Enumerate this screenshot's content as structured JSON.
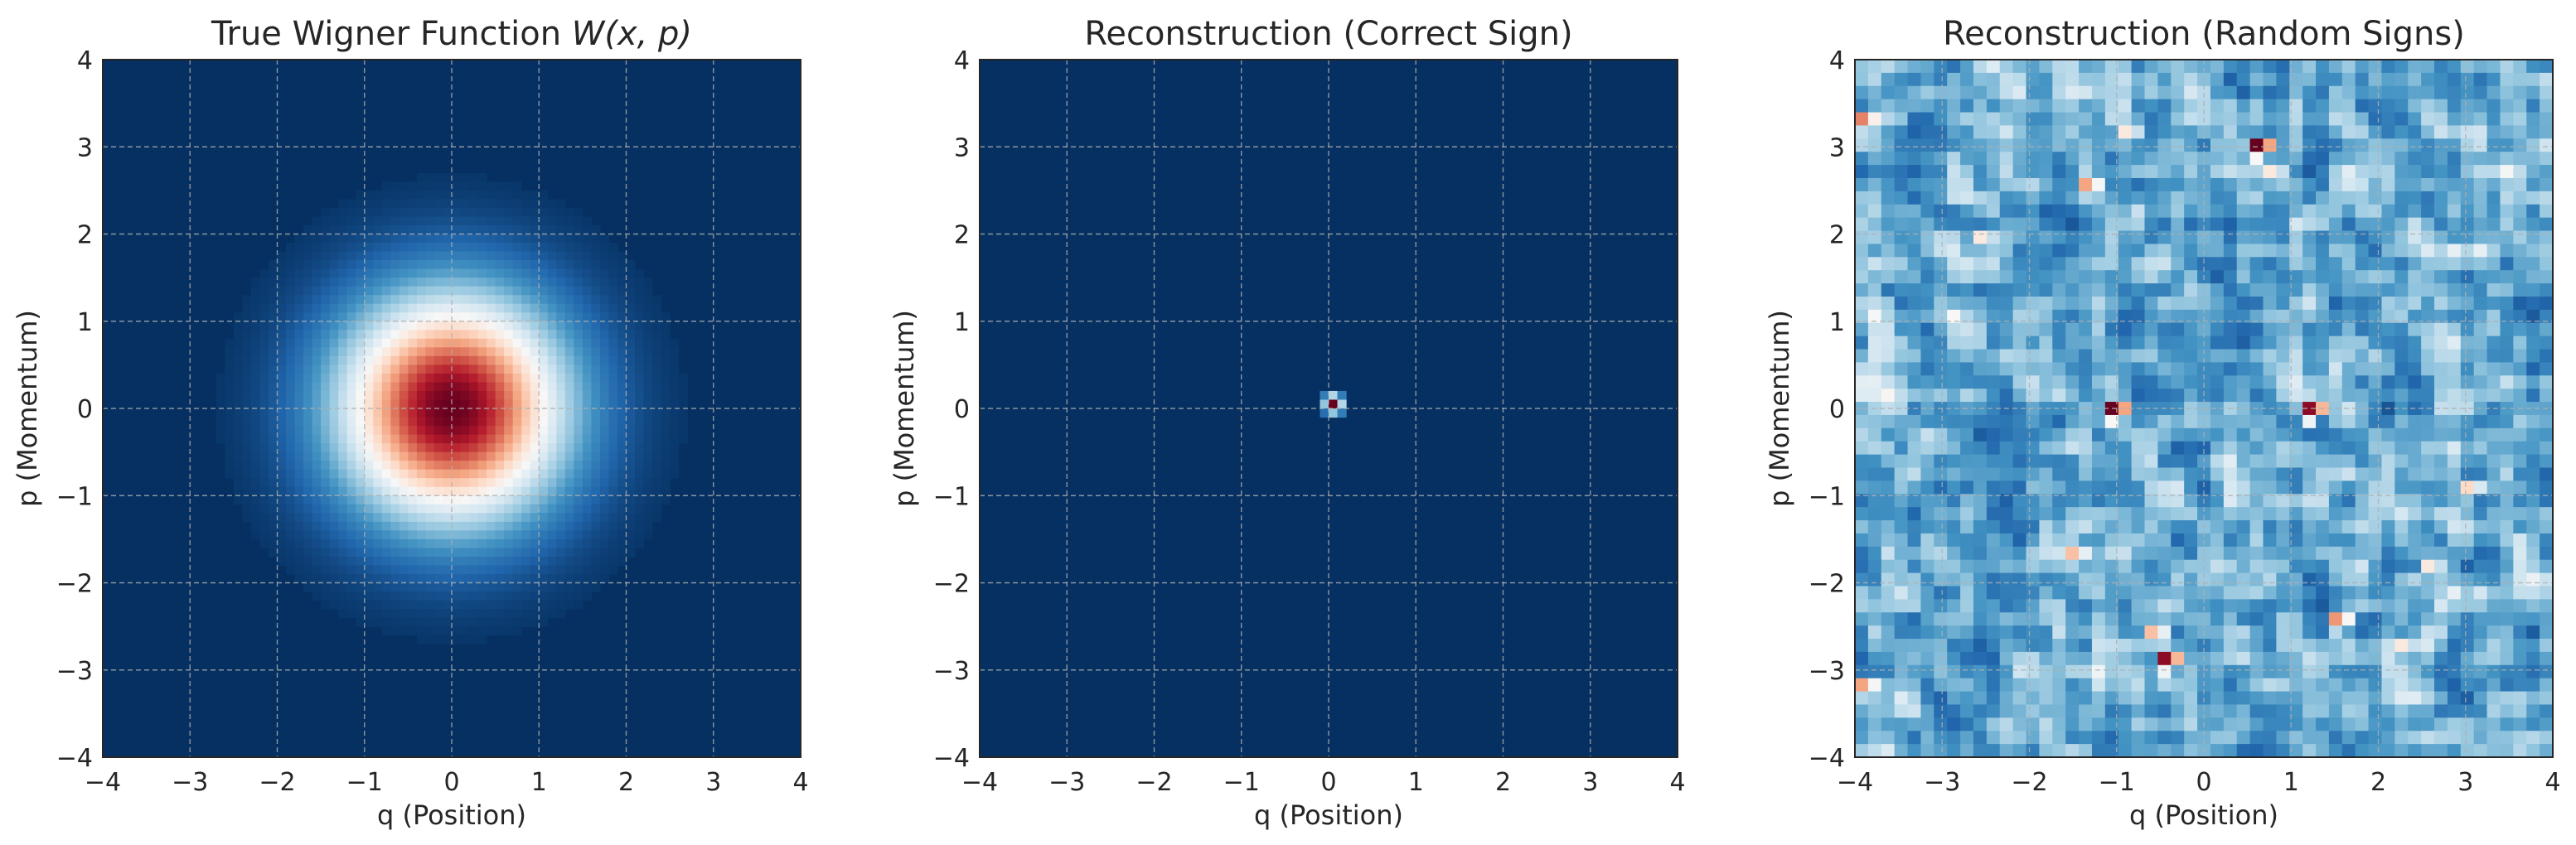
{
  "colormap": {
    "name": "RdBu_r",
    "stops": [
      "#053061",
      "#2166ac",
      "#4393c3",
      "#92c5de",
      "#d1e5f0",
      "#f7f7f7",
      "#fddbc7",
      "#f4a582",
      "#d6604d",
      "#b2182b",
      "#67001f"
    ]
  },
  "chart_data": [
    {
      "type": "heatmap",
      "title_text": "True Wigner Function ",
      "title_math": "W(x, p)",
      "xlabel": "q (Position)",
      "ylabel": "p (Momentum)",
      "xlim": [
        -4,
        4
      ],
      "ylim": [
        -4,
        4
      ],
      "xticks": [
        -4,
        -3,
        -2,
        -1,
        0,
        1,
        2,
        3,
        4
      ],
      "yticks": [
        -4,
        -3,
        -2,
        -1,
        0,
        1,
        2,
        3,
        4
      ],
      "grid": true,
      "field": {
        "kind": "gaussian",
        "center": [
          0,
          0
        ],
        "sigma": 0.9,
        "vmin": 0,
        "vmax": 1
      },
      "grid_cells": 80
    },
    {
      "type": "heatmap",
      "title_text": "Reconstruction (Correct Sign)",
      "title_math": "",
      "xlabel": "q (Position)",
      "ylabel": "p (Momentum)",
      "xlim": [
        -4,
        4
      ],
      "ylim": [
        -4,
        4
      ],
      "xticks": [
        -4,
        -3,
        -2,
        -1,
        0,
        1,
        2,
        3,
        4
      ],
      "yticks": [
        -4,
        -3,
        -2,
        -1,
        0,
        1,
        2,
        3,
        4
      ],
      "grid": true,
      "field": {
        "kind": "point",
        "center": [
          0.05,
          0.05
        ],
        "vmin": 0,
        "vmax": 1
      },
      "grid_cells": 80
    },
    {
      "type": "heatmap",
      "title_text": "Reconstruction (Random Signs)",
      "title_math": "",
      "xlabel": "q (Position)",
      "ylabel": "p (Momentum)",
      "xlim": [
        -4,
        4
      ],
      "ylim": [
        -4,
        4
      ],
      "xticks": [
        -4,
        -3,
        -2,
        -1,
        0,
        1,
        2,
        3,
        4
      ],
      "yticks": [
        -4,
        -3,
        -2,
        -1,
        0,
        1,
        2,
        3,
        4
      ],
      "grid": true,
      "field": {
        "kind": "noise",
        "seed": 7,
        "vmin": 0,
        "vmax": 1,
        "hotspots": [
          {
            "x": 0.55,
            "y": 2.95,
            "v": 1.0
          },
          {
            "x": -1.0,
            "y": 0.05,
            "v": 1.0
          },
          {
            "x": 1.2,
            "y": 0.05,
            "v": 0.95
          },
          {
            "x": -0.45,
            "y": -2.8,
            "v": 0.95
          },
          {
            "x": -4.0,
            "y": 3.3,
            "v": 0.75
          },
          {
            "x": -4.0,
            "y": -3.15,
            "v": 0.7
          },
          {
            "x": -1.35,
            "y": 2.55,
            "v": 0.7
          },
          {
            "x": 1.5,
            "y": -2.35,
            "v": 0.72
          },
          {
            "x": -1.55,
            "y": -1.7,
            "v": 0.65
          },
          {
            "x": -0.55,
            "y": -2.55,
            "v": 0.65
          },
          {
            "x": 2.2,
            "y": -2.75,
            "v": 0.55
          },
          {
            "x": 2.95,
            "y": -0.85,
            "v": 0.6
          },
          {
            "x": 2.55,
            "y": -1.8,
            "v": 0.55
          },
          {
            "x": -0.85,
            "y": 3.1,
            "v": 0.55
          },
          {
            "x": -2.6,
            "y": 1.95,
            "v": 0.55
          },
          {
            "x": 0.7,
            "y": 2.65,
            "v": 0.55
          },
          {
            "x": -2.85,
            "y": 1.1,
            "v": 0.5
          }
        ]
      },
      "grid_cells": 53
    }
  ]
}
